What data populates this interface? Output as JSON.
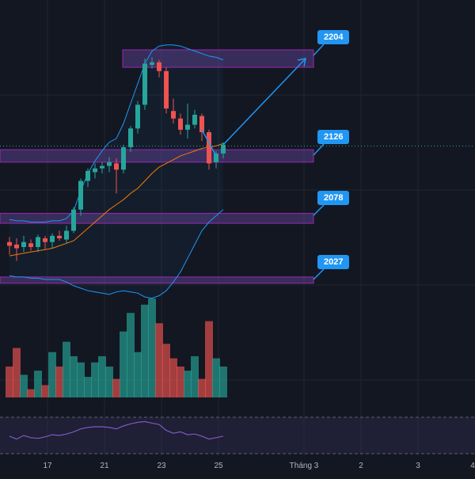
{
  "chart_data": {
    "type": "candlestick",
    "instrument_note": "",
    "colors": {
      "up": "#26a69a",
      "down": "#ef5350",
      "background": "#131722",
      "zone_fill": "#7e57c2",
      "zone_stroke": "#9c27b0",
      "bollinger": "#2196f3",
      "ma": "#f57c00",
      "rsi": "#7e57c2",
      "tag": "#2196f3",
      "grid": "#1f2430"
    },
    "price_tags": [
      {
        "label": "2204",
        "value": 2204
      },
      {
        "label": "2126",
        "value": 2126
      },
      {
        "label": "2078",
        "value": 2078
      },
      {
        "label": "2027",
        "value": 2027
      }
    ],
    "x_tick_labels": [
      {
        "label": "17",
        "index": 7
      },
      {
        "label": "21",
        "index": 15
      },
      {
        "label": "23",
        "index": 23
      },
      {
        "label": "25",
        "index": 31
      },
      {
        "label": "Tháng 3",
        "index": 42
      },
      {
        "label": "2",
        "index": 50
      },
      {
        "label": "3",
        "index": 58
      },
      {
        "label": "4",
        "index": 66
      }
    ],
    "candles": [
      {
        "o": 2057,
        "h": 2061,
        "l": 2047,
        "c": 2054
      },
      {
        "o": 2055,
        "h": 2060,
        "l": 2042,
        "c": 2052
      },
      {
        "o": 2053,
        "h": 2062,
        "l": 2049,
        "c": 2057
      },
      {
        "o": 2056,
        "h": 2059,
        "l": 2050,
        "c": 2053
      },
      {
        "o": 2053,
        "h": 2063,
        "l": 2049,
        "c": 2061
      },
      {
        "o": 2060,
        "h": 2062,
        "l": 2051,
        "c": 2057
      },
      {
        "o": 2057,
        "h": 2064,
        "l": 2052,
        "c": 2062
      },
      {
        "o": 2062,
        "h": 2066,
        "l": 2058,
        "c": 2060
      },
      {
        "o": 2059,
        "h": 2070,
        "l": 2056,
        "c": 2066
      },
      {
        "o": 2066,
        "h": 2085,
        "l": 2064,
        "c": 2083
      },
      {
        "o": 2083,
        "h": 2108,
        "l": 2078,
        "c": 2106
      },
      {
        "o": 2106,
        "h": 2116,
        "l": 2101,
        "c": 2114
      },
      {
        "o": 2113,
        "h": 2120,
        "l": 2108,
        "c": 2116
      },
      {
        "o": 2116,
        "h": 2121,
        "l": 2112,
        "c": 2118
      },
      {
        "o": 2118,
        "h": 2125,
        "l": 2113,
        "c": 2121
      },
      {
        "o": 2120,
        "h": 2124,
        "l": 2096,
        "c": 2115
      },
      {
        "o": 2115,
        "h": 2135,
        "l": 2112,
        "c": 2133
      },
      {
        "o": 2133,
        "h": 2150,
        "l": 2129,
        "c": 2148
      },
      {
        "o": 2148,
        "h": 2170,
        "l": 2144,
        "c": 2167
      },
      {
        "o": 2167,
        "h": 2204,
        "l": 2163,
        "c": 2200
      },
      {
        "o": 2199,
        "h": 2205,
        "l": 2196,
        "c": 2201
      },
      {
        "o": 2201,
        "h": 2203,
        "l": 2189,
        "c": 2194
      },
      {
        "o": 2194,
        "h": 2197,
        "l": 2160,
        "c": 2164
      },
      {
        "o": 2162,
        "h": 2172,
        "l": 2152,
        "c": 2156
      },
      {
        "o": 2156,
        "h": 2160,
        "l": 2143,
        "c": 2147
      },
      {
        "o": 2147,
        "h": 2168,
        "l": 2140,
        "c": 2151
      },
      {
        "o": 2151,
        "h": 2163,
        "l": 2148,
        "c": 2159
      },
      {
        "o": 2158,
        "h": 2160,
        "l": 2138,
        "c": 2145
      },
      {
        "o": 2145,
        "h": 2147,
        "l": 2115,
        "c": 2120
      },
      {
        "o": 2121,
        "h": 2130,
        "l": 2116,
        "c": 2128
      },
      {
        "o": 2128,
        "h": 2137,
        "l": 2124,
        "c": 2135
      }
    ],
    "volumes": [
      30,
      48,
      22,
      8,
      26,
      12,
      44,
      30,
      54,
      40,
      34,
      20,
      34,
      40,
      30,
      18,
      64,
      82,
      44,
      90,
      96,
      72,
      52,
      38,
      30,
      26,
      40,
      18,
      74,
      38,
      30
    ],
    "rsi": [
      54,
      50,
      55,
      52,
      51,
      53,
      56,
      55,
      57,
      60,
      64,
      66,
      67,
      67,
      66,
      64,
      68,
      71,
      73,
      74,
      72,
      70,
      62,
      58,
      60,
      56,
      57,
      54,
      50,
      52,
      54
    ],
    "ma": [
      2046,
      2047,
      2048,
      2049,
      2050,
      2051,
      2052,
      2054,
      2056,
      2058,
      2063,
      2068,
      2073,
      2078,
      2083,
      2087,
      2091,
      2096,
      2100,
      2106,
      2112,
      2117,
      2120,
      2123,
      2126,
      2128,
      2130,
      2132,
      2133,
      2134,
      2136
    ],
    "bb_upper": [
      2075,
      2074,
      2074,
      2073,
      2073,
      2073,
      2074,
      2074,
      2076,
      2082,
      2098,
      2112,
      2122,
      2130,
      2137,
      2140,
      2152,
      2168,
      2184,
      2200,
      2210,
      2214,
      2215,
      2215,
      2214,
      2212,
      2210,
      2208,
      2206,
      2205,
      2203
    ],
    "bb_lower": [
      2030,
      2029,
      2029,
      2028,
      2028,
      2027,
      2027,
      2027,
      2025,
      2022,
      2020,
      2018,
      2017,
      2016,
      2015,
      2017,
      2018,
      2017,
      2016,
      2013,
      2012,
      2014,
      2018,
      2025,
      2033,
      2044,
      2055,
      2066,
      2073,
      2078,
      2083
    ]
  }
}
